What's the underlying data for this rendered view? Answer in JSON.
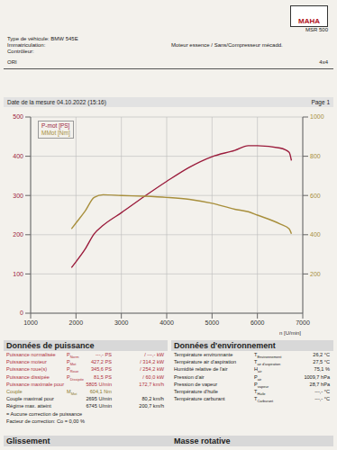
{
  "header": {
    "logo": "MAHA",
    "model": "MSR 500",
    "left": [
      "Type de véhicule: BMW 545E",
      "Immatriculation:",
      "Contrôleur:"
    ],
    "engine": "Moteur essence / Sans/Compresseur mécadd.",
    "code": "ORI",
    "drive": "4x4",
    "date": "Date de la mesure 04.10.2022 (15:16)",
    "page": "Page 1"
  },
  "chart_data": {
    "type": "line",
    "x_label": "n [U/min]",
    "x": [
      1900,
      2000,
      2200,
      2400,
      2600,
      3000,
      3500,
      4000,
      4500,
      5000,
      5500,
      5800,
      6000,
      6500,
      6700,
      6750
    ],
    "series": [
      {
        "name": "P-mot [PS]",
        "color": "#9b1c3c",
        "values": [
          116,
          131,
          163,
          202,
          224,
          256,
          297,
          336,
          372,
          399,
          415,
          427,
          427,
          421,
          410,
          389
        ]
      },
      {
        "name": "MMot [Nm]",
        "color": "#a88f3c",
        "axis": "y2",
        "values": [
          430,
          460,
          520,
          590,
          604,
          600,
          596,
          590,
          580,
          560,
          530,
          517,
          500,
          455,
          430,
          405
        ]
      }
    ],
    "xlim": [
      1000,
      7000
    ],
    "xticks": [
      1000,
      2000,
      3000,
      4000,
      5000,
      6000,
      7000
    ],
    "ylim": [
      0,
      500
    ],
    "yticks": [
      0,
      100,
      200,
      300,
      400,
      500
    ],
    "y2lim": [
      0,
      1000
    ],
    "y2ticks": [
      200,
      400,
      600,
      800,
      1000
    ],
    "grid": true,
    "legend": "upper left"
  },
  "power_data": {
    "title": "Données de puissance",
    "rows": [
      {
        "label": "Puissance normalisée",
        "symbol": "PNorm",
        "value": "---,- PS",
        "value2": "/ ---,- kW"
      },
      {
        "label": "Puissance moteur",
        "symbol": "PMot",
        "value": "427,2 PS",
        "value2": "/ 314,2 kW"
      },
      {
        "label": "Puissance roue(s)",
        "symbol": "PRoue",
        "value": "345,6 PS",
        "value2": "/ 254,2 kW"
      },
      {
        "label": "Puissance dissipée",
        "symbol": "PDissipée",
        "value": "81,5 PS",
        "value2": "/ 60,0 kW"
      },
      {
        "label": "Puissance maximale pour",
        "value": "5805 U/min",
        "value2": "172,7 km/h"
      },
      {
        "label": "Couple",
        "symbol": "MMot",
        "value": "604,1 Nm"
      },
      {
        "label": "Couple maximal pour",
        "value": "2695 U/min",
        "value2": "80,2 km/h"
      },
      {
        "label": "Régime max. atteint",
        "value": "6745 U/min",
        "value2": "200,7 km/h"
      },
      {
        "label": "= Aucune correction de puissance"
      },
      {
        "label": "Facteur de correction: Co = 0,00 %"
      }
    ]
  },
  "environment_data": {
    "title": "Données d'environnement",
    "rows": [
      {
        "label": "Température environnante",
        "symbol": "TEnvironnement",
        "value": "26,2 °C"
      },
      {
        "label": "Température air d'aspiration",
        "symbol": "Tair d'aspiration",
        "value": "27,5 °C"
      },
      {
        "label": "Humidité relative de l'air",
        "symbol": "Hair",
        "value": "75,1 %"
      },
      {
        "label": "Pression d'air",
        "symbol": "Pair",
        "value": "1009,7 hPa"
      },
      {
        "label": "Pression de vapeur",
        "symbol": "Pvapeur",
        "value": "28,7 hPa"
      },
      {
        "label": "Température d'huile",
        "symbol": "THuile",
        "value": "---,- °C"
      },
      {
        "label": "Température carburant",
        "symbol": "TCarburant",
        "value": "---,- °C"
      }
    ]
  },
  "footer": [
    "Glissement",
    "Masse rotative"
  ]
}
